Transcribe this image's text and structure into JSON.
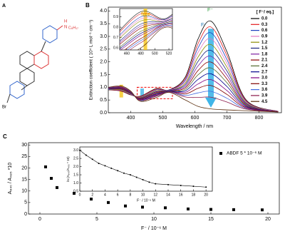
{
  "structure": {
    "panel": "A",
    "atoms": [
      "Br",
      "N",
      "H",
      "C₈H₁₇"
    ]
  },
  "chart_data": [
    {
      "type": "line",
      "panel": "B",
      "ylabel": "Extinction coefficient ( 10⁴ L mol⁻¹ cm⁻¹)",
      "xlabel": "Wavelength / nm",
      "legend_title": "[ F⁻/ eq.]",
      "annotations": [
        "F⁻",
        "F⁻"
      ],
      "x": [
        330,
        370,
        400,
        430,
        480,
        520,
        570,
        610,
        650,
        700,
        760,
        860
      ],
      "xlim": [
        330,
        870
      ],
      "ylim": [
        0,
        4.15
      ],
      "xticks": [
        400,
        500,
        600,
        700,
        800
      ],
      "yticks": [
        {
          "value": 0,
          "label": "0.0"
        },
        0.5,
        {
          "value": 1,
          "label": "1.0"
        },
        1.5,
        {
          "value": 2,
          "label": "2.0"
        },
        2.5,
        {
          "value": 3,
          "label": "3.0"
        },
        3.5,
        {
          "value": 4,
          "label": "4.0"
        }
      ],
      "series": [
        {
          "name": "0.0",
          "color": "#000000",
          "values": [
            0.9,
            0.85,
            0.7,
            0.65,
            0.95,
            0.9,
            1.4,
            2.9,
            3.6,
            2.4,
            0.5,
            0.05
          ]
        },
        {
          "name": "0.3",
          "color": "#e41a1c",
          "values": [
            0.91,
            0.86,
            0.71,
            0.64,
            0.93,
            0.89,
            1.34,
            2.72,
            3.37,
            2.25,
            0.47,
            0.05
          ]
        },
        {
          "name": "0.6",
          "color": "#1f3fbf",
          "values": [
            0.91,
            0.88,
            0.72,
            0.62,
            0.9,
            0.89,
            1.28,
            2.55,
            3.14,
            2.09,
            0.44,
            0.05
          ]
        },
        {
          "name": "0.9",
          "color": "#e377c2",
          "values": [
            0.92,
            0.89,
            0.73,
            0.61,
            0.88,
            0.88,
            1.22,
            2.37,
            2.91,
            1.94,
            0.42,
            0.05
          ]
        },
        {
          "name": "1.2",
          "color": "#8c8c00",
          "values": [
            0.93,
            0.9,
            0.74,
            0.6,
            0.86,
            0.87,
            1.16,
            2.19,
            2.68,
            1.79,
            0.39,
            0.04
          ]
        },
        {
          "name": "1.5",
          "color": "#1a237e",
          "values": [
            0.93,
            0.92,
            0.75,
            0.58,
            0.83,
            0.87,
            1.1,
            2.02,
            2.45,
            1.64,
            0.36,
            0.04
          ]
        },
        {
          "name": "1.8",
          "color": "#7b1fa2",
          "values": [
            0.94,
            0.93,
            0.76,
            0.57,
            0.81,
            0.86,
            1.04,
            1.84,
            2.22,
            1.48,
            0.33,
            0.04
          ]
        },
        {
          "name": "2.1",
          "color": "#8b0000",
          "values": [
            0.95,
            0.94,
            0.77,
            0.56,
            0.79,
            0.85,
            0.98,
            1.66,
            1.99,
            1.33,
            0.3,
            0.04
          ]
        },
        {
          "name": "2.4",
          "color": "#556b2f",
          "values": [
            0.95,
            0.96,
            0.78,
            0.54,
            0.76,
            0.85,
            0.92,
            1.49,
            1.76,
            1.18,
            0.28,
            0.04
          ]
        },
        {
          "name": "2.7",
          "color": "#00008b",
          "values": [
            0.96,
            0.97,
            0.79,
            0.53,
            0.74,
            0.84,
            0.86,
            1.31,
            1.53,
            1.03,
            0.25,
            0.04
          ]
        },
        {
          "name": "3.0",
          "color": "#800080",
          "values": [
            0.97,
            0.98,
            0.8,
            0.52,
            0.72,
            0.83,
            0.8,
            1.13,
            1.3,
            0.87,
            0.22,
            0.04
          ]
        },
        {
          "name": "3.3",
          "color": "#800000",
          "values": [
            0.97,
            1.0,
            0.81,
            0.5,
            0.69,
            0.83,
            0.74,
            0.96,
            1.07,
            0.72,
            0.19,
            0.04
          ]
        },
        {
          "name": "3.6",
          "color": "#4169e1",
          "values": [
            0.98,
            1.01,
            0.82,
            0.49,
            0.67,
            0.82,
            0.68,
            0.78,
            0.84,
            0.57,
            0.16,
            0.03
          ]
        },
        {
          "name": "3.9",
          "color": "#8b1a4a",
          "values": [
            0.99,
            1.02,
            0.83,
            0.48,
            0.65,
            0.81,
            0.62,
            0.6,
            0.61,
            0.42,
            0.14,
            0.03
          ]
        },
        {
          "name": "4.5",
          "color": "#5a2d0c",
          "values": [
            1.0,
            1.05,
            0.85,
            0.45,
            0.6,
            0.8,
            0.5,
            0.25,
            0.15,
            0.11,
            0.08,
            0.03
          ]
        }
      ]
    },
    {
      "type": "inset-line",
      "annotation": "free",
      "xlim": [
        450,
        525
      ],
      "ylim": [
        0.58,
        0.98
      ],
      "xticks": [
        460,
        480,
        500,
        520
      ],
      "yticks": [
        0.6,
        0.7,
        0.8,
        0.9
      ]
    },
    {
      "type": "scatter",
      "panel": "C",
      "ylabel": "A₆₄₀ / A₄₈₅ *10",
      "xlabel": "F⁻ / 10⁻⁶ M",
      "xlim": [
        -1,
        21
      ],
      "ylim": [
        0,
        31
      ],
      "xticks": [
        0,
        5,
        10,
        15,
        20
      ],
      "yticks": [
        0,
        5,
        10,
        15,
        20,
        25,
        30
      ],
      "series": [
        {
          "name": "ABDF 5 * 10⁻⁶ M",
          "color": "#000000",
          "x": [
            0.5,
            1,
            1.5,
            3,
            4.5,
            6,
            7.5,
            9,
            11,
            13,
            15,
            17,
            19.5
          ],
          "values": [
            20.5,
            15.5,
            11.5,
            9,
            6.5,
            5,
            3.5,
            3,
            2.7,
            2.2,
            2,
            1.9,
            1.8
          ]
        }
      ]
    },
    {
      "type": "line-markers",
      "ylabel": "ln (A₆₄₀/A₄₈₅ * 10)",
      "xlabel": "F⁻ / 10⁻⁶ M",
      "xlim": [
        0,
        21
      ],
      "ylim": [
        0.5,
        3.2
      ],
      "xticks": [
        0,
        2,
        4,
        6,
        8,
        10,
        12,
        14,
        16,
        18,
        20
      ],
      "yticks": [
        0.5,
        {
          "value": 1,
          "label": "1.0"
        },
        1.5,
        {
          "value": 2,
          "label": "2.0"
        },
        2.5,
        {
          "value": 3,
          "label": "3.0"
        }
      ],
      "series": [
        {
          "color": "#000000",
          "x": [
            0,
            1,
            2,
            3,
            4,
            5,
            6,
            7,
            8,
            9,
            10,
            11,
            12,
            14,
            16,
            18,
            20
          ],
          "values": [
            3.0,
            2.7,
            2.45,
            2.2,
            2.05,
            1.9,
            1.75,
            1.6,
            1.5,
            1.35,
            1.2,
            1.05,
            0.95,
            0.9,
            0.85,
            0.8,
            0.75
          ]
        }
      ]
    }
  ]
}
